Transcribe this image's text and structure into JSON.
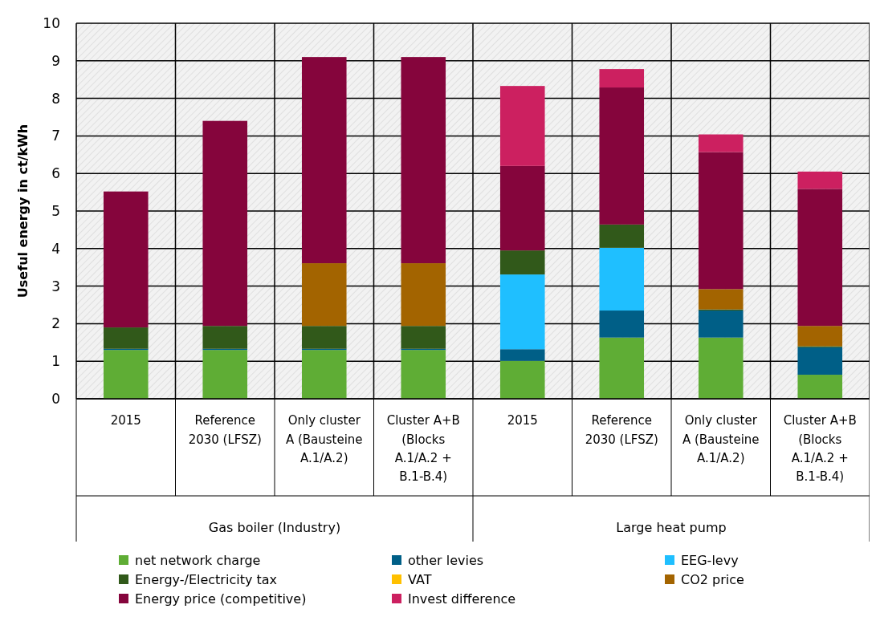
{
  "chart_data": {
    "type": "bar",
    "stacked": true,
    "ylabel": "Useful energy in ct/kWh",
    "categories": [
      "2015",
      "Reference 2030 (LFSZ)",
      "Only cluster A (Bausteine A.1/A.2)",
      "Cluster A+B (Blocks A.1/A.2 + B.1-B.4)",
      "2015",
      "Reference 2030 (LFSZ)",
      "Only cluster A (Bausteine A.1/A.2)",
      "Cluster A+B (Blocks A.1/A.2 + B.1-B.4)"
    ],
    "series": [
      {
        "name": "net network charge",
        "color": "#5fad35",
        "values": [
          1.3,
          1.3,
          1.3,
          1.3,
          1.01,
          1.63,
          1.63,
          0.64
        ]
      },
      {
        "name": "other levies",
        "color": "#005f87",
        "values": [
          0.03,
          0.03,
          0.03,
          0.03,
          0.31,
          0.72,
          0.72,
          0.73
        ]
      },
      {
        "name": "EEG-levy",
        "color": "#1fbfff",
        "values": [
          0,
          0,
          0,
          0,
          1.99,
          1.67,
          0,
          0
        ]
      },
      {
        "name": "Energy-/Electricity tax",
        "color": "#31591a",
        "values": [
          0.57,
          0.61,
          0.61,
          0.61,
          0.64,
          0.62,
          0.03,
          0.03
        ]
      },
      {
        "name": "VAT",
        "color": "#ffc000",
        "values": [
          0,
          0,
          0,
          0,
          0,
          0,
          0,
          0
        ]
      },
      {
        "name": "CO2 price",
        "color": "#a36400",
        "values": [
          0,
          0,
          1.67,
          1.67,
          0,
          0,
          0.54,
          0.54
        ]
      },
      {
        "name": "Energy price (competitive)",
        "color": "#85053c",
        "values": [
          3.62,
          5.46,
          5.49,
          5.49,
          2.25,
          3.65,
          3.65,
          3.65
        ]
      },
      {
        "name": "Invest difference",
        "color": "#cc2060",
        "values": [
          0,
          0,
          0,
          0,
          2.13,
          0.49,
          0.47,
          0.46
        ]
      }
    ],
    "annotations": [
      "Gas boiler (Industry)",
      "Large heat pump"
    ],
    "ylim": [
      0,
      10
    ],
    "yticks": [
      0,
      1,
      2,
      3,
      4,
      5,
      6,
      7,
      8,
      9,
      10
    ],
    "grid": true,
    "legend": "bottom"
  }
}
